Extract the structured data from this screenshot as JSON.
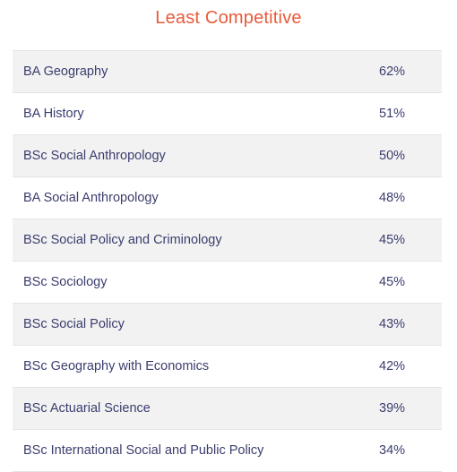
{
  "title": "Least Competitive",
  "colors": {
    "title": "#ea5a3a",
    "text": "#3a3d6e"
  },
  "rows": [
    {
      "course": "BA Geography",
      "percent": "62%"
    },
    {
      "course": "BA History",
      "percent": "51%"
    },
    {
      "course": "BSc Social Anthropology",
      "percent": "50%"
    },
    {
      "course": "BA Social Anthropology",
      "percent": "48%"
    },
    {
      "course": "BSc Social Policy and Criminology",
      "percent": "45%"
    },
    {
      "course": "BSc Sociology",
      "percent": "45%"
    },
    {
      "course": "BSc Social Policy",
      "percent": "43%"
    },
    {
      "course": "BSc Geography with Economics",
      "percent": "42%"
    },
    {
      "course": "BSc Actuarial Science",
      "percent": "39%"
    },
    {
      "course": "BSc International Social and Public Policy",
      "percent": "34%"
    }
  ]
}
